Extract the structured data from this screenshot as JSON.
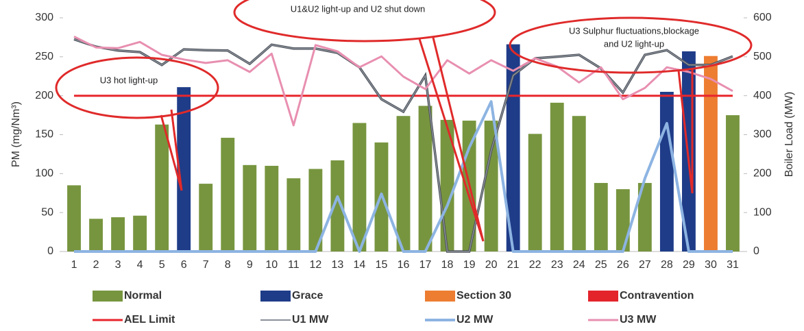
{
  "chart_data": {
    "type": "bar",
    "categories": [
      "1",
      "2",
      "3",
      "4",
      "5",
      "6",
      "7",
      "8",
      "9",
      "10",
      "11",
      "12",
      "13",
      "14",
      "15",
      "16",
      "17",
      "18",
      "19",
      "20",
      "21",
      "22",
      "23",
      "24",
      "25",
      "26",
      "27",
      "28",
      "29",
      "30",
      "31"
    ],
    "ylabel": "PM (mg/Nm³)",
    "y2label": "Boiler Load (MW)",
    "ylim": [
      0,
      300
    ],
    "yticks": [
      0,
      50,
      100,
      150,
      200,
      250,
      300
    ],
    "y2lim": [
      0,
      600
    ],
    "y2ticks": [
      0,
      100,
      200,
      300,
      400,
      500,
      600
    ],
    "grid": false,
    "legend": "bottom",
    "series": [
      {
        "name": "Normal",
        "type": "bar",
        "color": "#77953f",
        "values": [
          85,
          42,
          44,
          46,
          163,
          null,
          87,
          146,
          111,
          110,
          94,
          106,
          117,
          165,
          140,
          174,
          187,
          169,
          168,
          168,
          null,
          151,
          191,
          174,
          88,
          80,
          88,
          null,
          null,
          null,
          175
        ]
      },
      {
        "name": "Grace",
        "type": "bar",
        "color": "#1f3c88",
        "values": [
          null,
          null,
          null,
          null,
          null,
          211,
          null,
          null,
          null,
          null,
          null,
          null,
          null,
          null,
          null,
          null,
          null,
          null,
          null,
          null,
          266,
          null,
          null,
          null,
          null,
          null,
          null,
          205,
          257,
          null,
          null
        ]
      },
      {
        "name": "Section 30",
        "type": "bar",
        "color": "#ed7d31",
        "values": [
          null,
          null,
          null,
          null,
          null,
          null,
          null,
          null,
          null,
          null,
          null,
          null,
          null,
          null,
          null,
          null,
          null,
          null,
          null,
          null,
          null,
          null,
          null,
          null,
          null,
          null,
          null,
          null,
          null,
          251,
          null
        ]
      },
      {
        "name": "Contravention",
        "type": "bar",
        "color": "#e3242b",
        "values": [
          null,
          null,
          null,
          null,
          null,
          null,
          null,
          null,
          null,
          null,
          null,
          null,
          null,
          null,
          null,
          null,
          null,
          null,
          null,
          null,
          null,
          null,
          null,
          null,
          null,
          null,
          null,
          null,
          null,
          null,
          null
        ]
      },
      {
        "name": "AEL Limit",
        "type": "line",
        "color": "#e8262d",
        "values": [
          200,
          200,
          200,
          200,
          200,
          200,
          200,
          200,
          200,
          200,
          200,
          200,
          200,
          200,
          200,
          200,
          200,
          200,
          200,
          200,
          200,
          200,
          200,
          200,
          200,
          200,
          200,
          200,
          200,
          200,
          200
        ]
      },
      {
        "name": "U1 MW",
        "type": "line",
        "axis": "y2",
        "color": "#8a9099",
        "values": [
          545,
          526,
          516,
          512,
          479,
          519,
          517,
          516,
          482,
          531,
          521,
          521,
          510,
          473,
          391,
          359,
          452,
          0,
          0,
          259,
          452,
          496,
          500,
          505,
          470,
          408,
          505,
          517,
          479,
          479,
          501
        ]
      },
      {
        "name": "U2 MW",
        "type": "line",
        "axis": "y2",
        "color": "#8db4e2",
        "values": [
          0,
          0,
          0,
          0,
          0,
          0,
          0,
          0,
          0,
          0,
          0,
          0,
          141,
          0,
          148,
          0,
          0,
          118,
          267,
          385,
          0,
          0,
          0,
          0,
          0,
          0,
          188,
          329,
          0,
          0,
          0
        ]
      },
      {
        "name": "U3 MW",
        "type": "line",
        "axis": "y2",
        "color": "#e88fb0",
        "values": [
          552,
          524,
          522,
          538,
          505,
          493,
          484,
          491,
          461,
          508,
          324,
          530,
          514,
          473,
          501,
          449,
          417,
          491,
          457,
          491,
          464,
          496,
          475,
          434,
          473,
          391,
          420,
          473,
          461,
          443,
          412
        ]
      }
    ],
    "annotations": [
      {
        "lines": [
          "U3 hot light-up"
        ]
      },
      {
        "lines": [
          "U1&U2 light-up and U2 shut down"
        ]
      },
      {
        "lines": [
          "U3 Sulphur fluctuations,blockage",
          "and U2 light-up"
        ]
      }
    ]
  }
}
